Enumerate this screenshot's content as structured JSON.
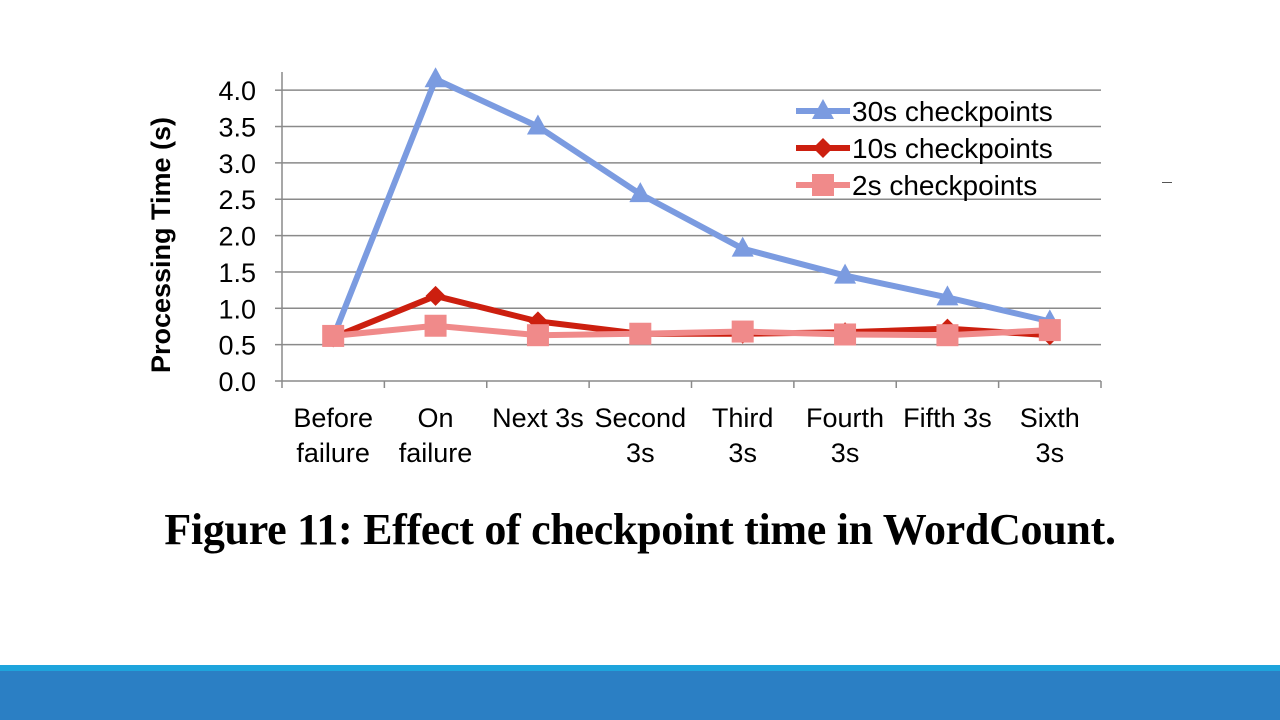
{
  "slide": {
    "caption": "Figure 11: Effect of checkpoint time in WordCount.",
    "footer_colors": {
      "top": "#1ea4dc",
      "bottom": "#2b7fc4"
    }
  },
  "chart_data": {
    "type": "line",
    "title": "",
    "xlabel": "",
    "ylabel": "Processing Time (s)",
    "ylim": [
      0,
      4.0
    ],
    "yticks": [
      "0.0",
      "0.5",
      "1.0",
      "1.5",
      "2.0",
      "2.5",
      "3.0",
      "3.5",
      "4.0"
    ],
    "grid": "horizontal",
    "legend_position": "top-right",
    "categories": [
      [
        "Before",
        "failure"
      ],
      [
        "On",
        "failure"
      ],
      [
        "Next 3s"
      ],
      [
        "Second",
        "3s"
      ],
      [
        "Third",
        "3s"
      ],
      [
        "Fourth",
        "3s"
      ],
      [
        "Fifth 3s"
      ],
      [
        "Sixth",
        "3s"
      ]
    ],
    "series": [
      {
        "name": "30s checkpoints",
        "color": "#7b9be0",
        "marker": "triangle",
        "values": [
          0.6,
          4.15,
          3.5,
          2.57,
          1.82,
          1.45,
          1.15,
          0.82
        ]
      },
      {
        "name": "10s checkpoints",
        "color": "#cc1f0f",
        "marker": "diamond",
        "values": [
          0.6,
          1.17,
          0.82,
          0.65,
          0.65,
          0.67,
          0.72,
          0.63
        ]
      },
      {
        "name": "2s checkpoints",
        "color": "#f08a8a",
        "marker": "square",
        "values": [
          0.62,
          0.76,
          0.63,
          0.65,
          0.68,
          0.64,
          0.63,
          0.7
        ]
      }
    ]
  }
}
